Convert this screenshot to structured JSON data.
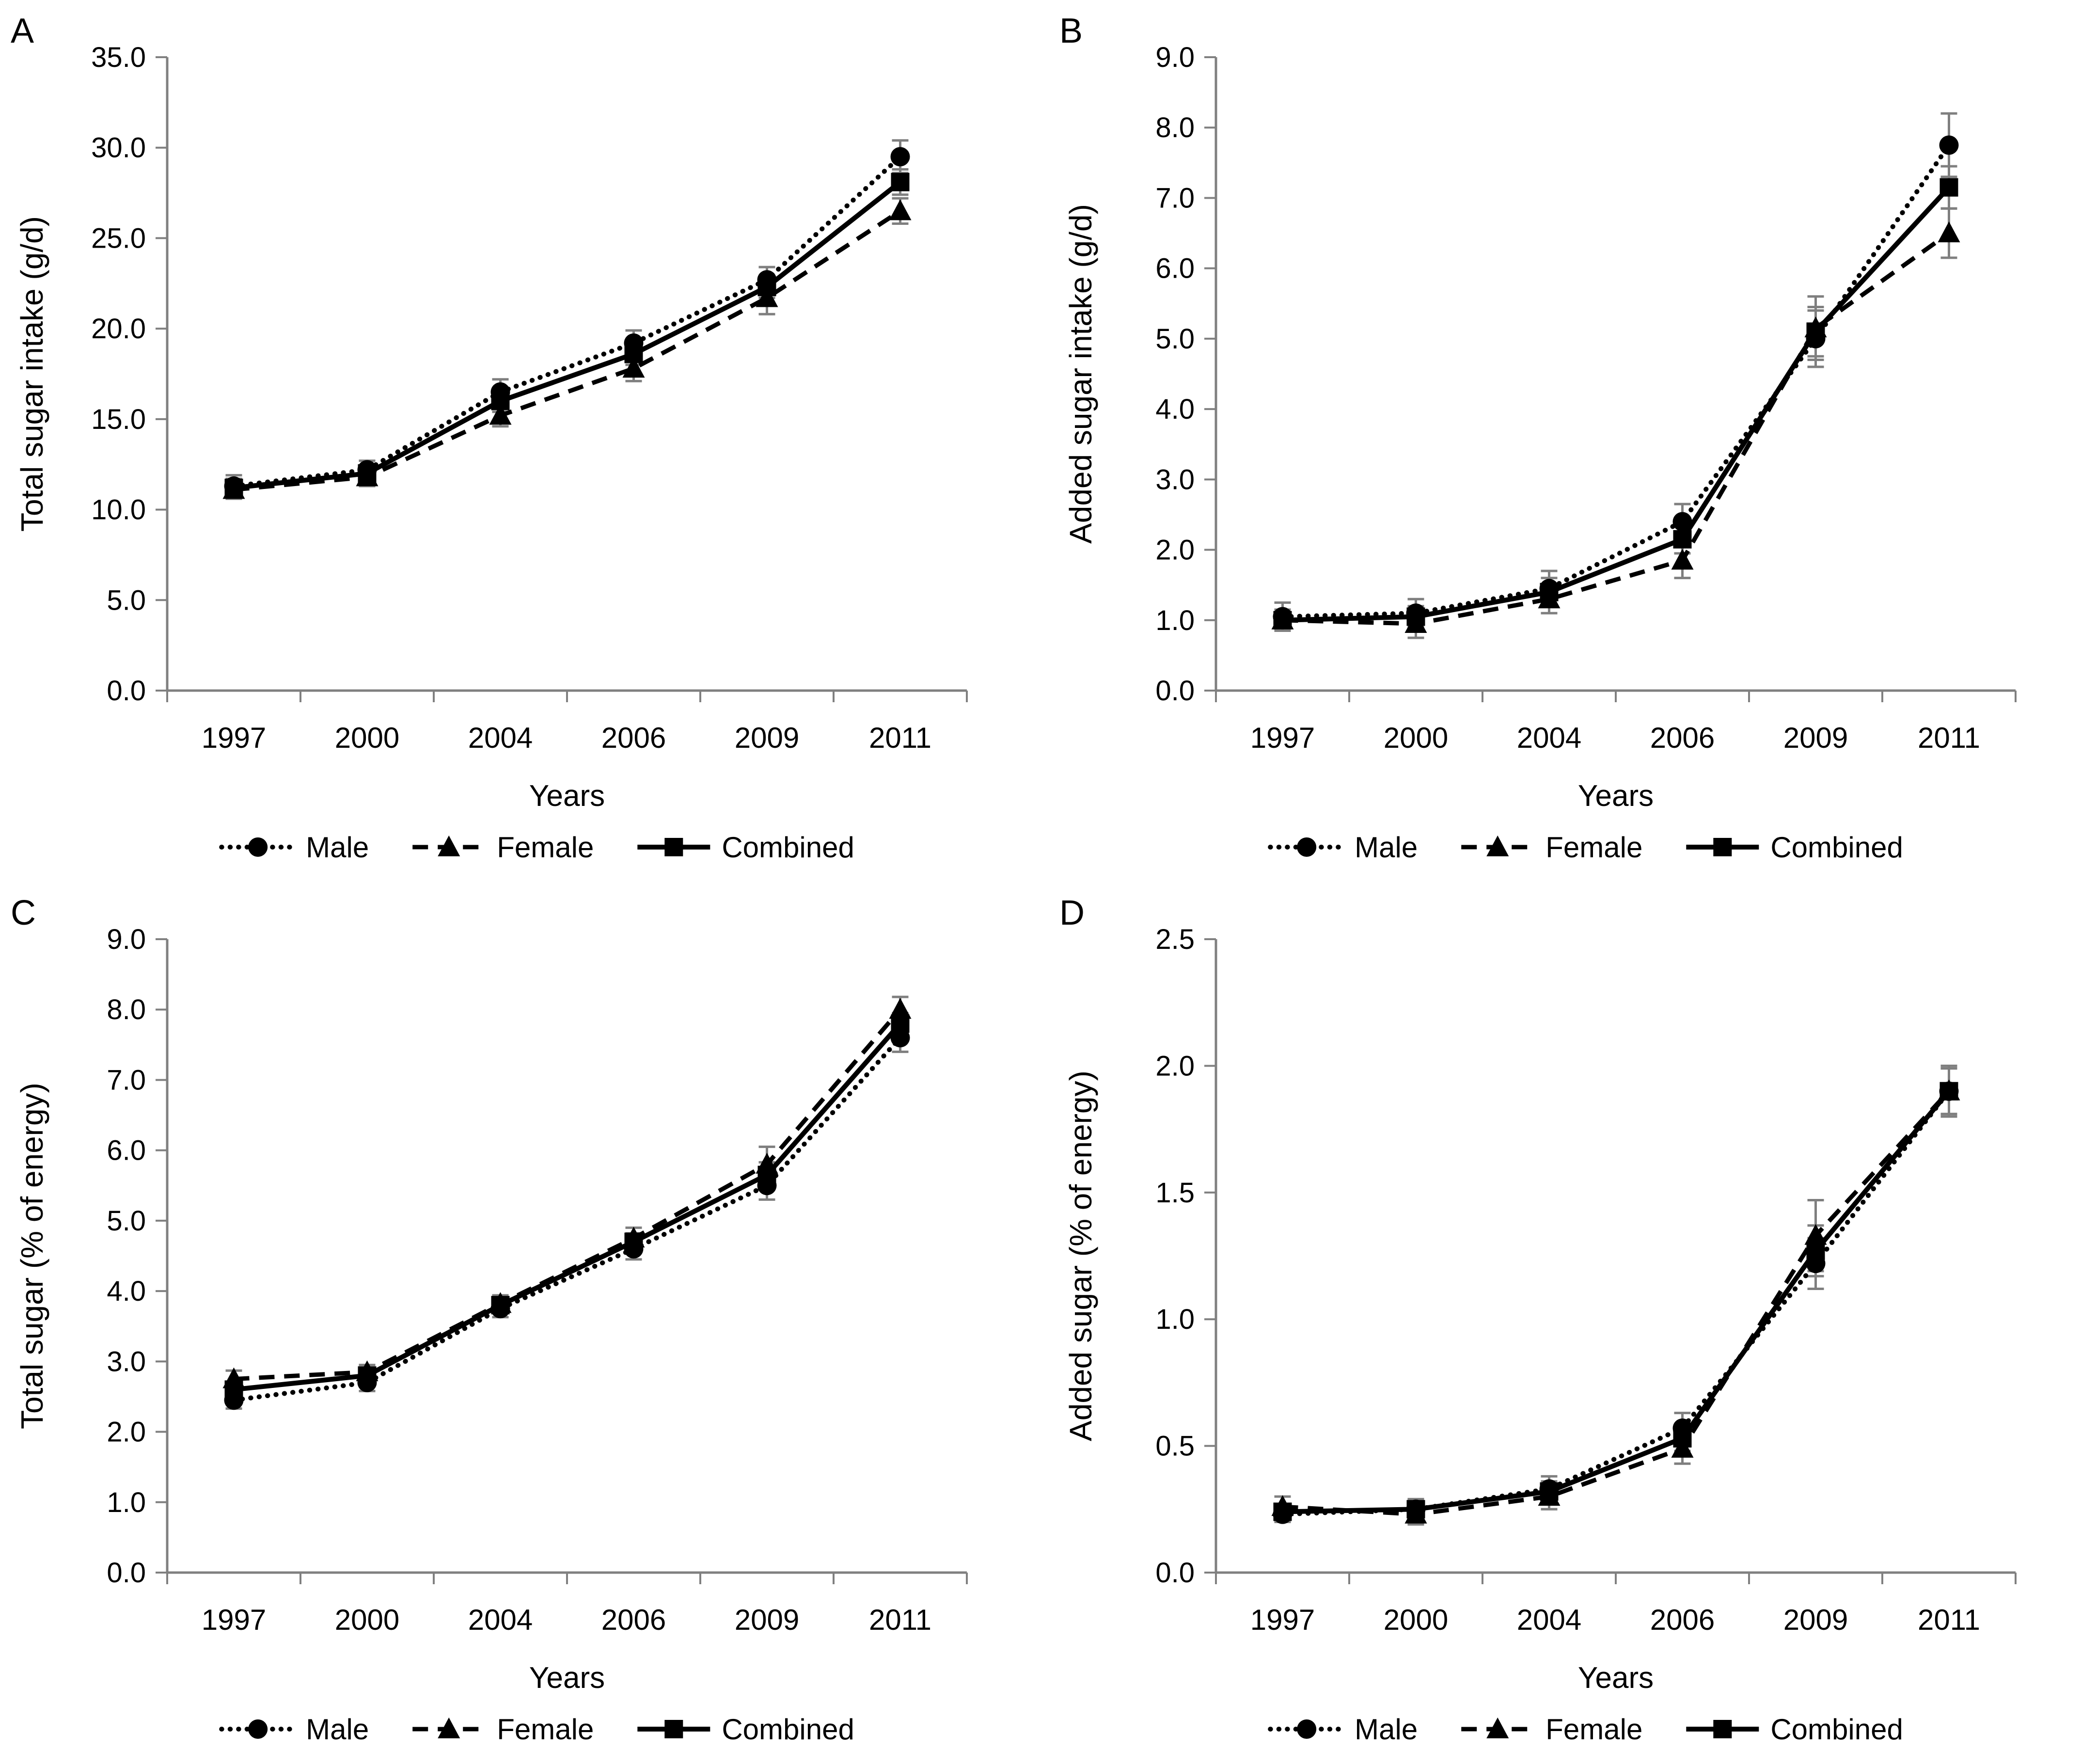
{
  "figure": {
    "background": "#ffffff",
    "text_color": "#000000",
    "axis_color": "#808080",
    "error_bar_color": "#7f7f7f",
    "series_color": "#000000"
  },
  "legend": {
    "items": [
      {
        "label": "Male",
        "marker": "circle",
        "line": "dotted"
      },
      {
        "label": "Female",
        "marker": "triangle",
        "line": "dashed"
      },
      {
        "label": "Combined",
        "marker": "square",
        "line": "solid"
      }
    ]
  },
  "chart_data": [
    {
      "panel_label": "A",
      "type": "line",
      "title": "",
      "xlabel": "Years",
      "ylabel": "Total sugar intake (g/d)",
      "categories": [
        "1997",
        "2000",
        "2004",
        "2006",
        "2009",
        "2011"
      ],
      "ylim": [
        0,
        35
      ],
      "ytick_step": 5,
      "ytick_labels": [
        "0.0",
        "5.0",
        "10.0",
        "15.0",
        "20.0",
        "25.0",
        "30.0",
        "35.0"
      ],
      "grid": false,
      "legend_position": "bottom",
      "series": [
        {
          "name": "Male",
          "marker": "circle",
          "line": "dotted",
          "values": [
            11.3,
            12.2,
            16.5,
            19.2,
            22.7,
            29.5
          ],
          "errors": [
            0.6,
            0.5,
            0.7,
            0.7,
            0.7,
            0.9
          ]
        },
        {
          "name": "Female",
          "marker": "triangle",
          "line": "dashed",
          "values": [
            11.1,
            11.8,
            15.2,
            17.8,
            21.7,
            26.5
          ],
          "errors": [
            0.5,
            0.5,
            0.6,
            0.7,
            0.9,
            0.7
          ]
        },
        {
          "name": "Combined",
          "marker": "square",
          "line": "solid",
          "values": [
            11.2,
            12.0,
            16.0,
            18.6,
            22.3,
            28.1
          ],
          "errors": [
            0.5,
            0.4,
            0.6,
            0.6,
            0.6,
            0.7
          ]
        }
      ]
    },
    {
      "panel_label": "B",
      "type": "line",
      "title": "",
      "xlabel": "Years",
      "ylabel": "Added sugar intake (g/d)",
      "categories": [
        "1997",
        "2000",
        "2004",
        "2006",
        "2009",
        "2011"
      ],
      "ylim": [
        0,
        9
      ],
      "ytick_step": 1,
      "ytick_labels": [
        "0.0",
        "1.0",
        "2.0",
        "3.0",
        "4.0",
        "5.0",
        "6.0",
        "7.0",
        "8.0",
        "9.0"
      ],
      "grid": false,
      "legend_position": "bottom",
      "series": [
        {
          "name": "Male",
          "marker": "circle",
          "line": "dotted",
          "values": [
            1.05,
            1.1,
            1.45,
            2.4,
            5.0,
            7.75
          ],
          "errors": [
            0.2,
            0.2,
            0.25,
            0.25,
            0.4,
            0.45
          ]
        },
        {
          "name": "Female",
          "marker": "triangle",
          "line": "dashed",
          "values": [
            1.0,
            0.95,
            1.3,
            1.85,
            5.15,
            6.5
          ],
          "errors": [
            0.15,
            0.2,
            0.2,
            0.25,
            0.45,
            0.35
          ]
        },
        {
          "name": "Combined",
          "marker": "square",
          "line": "solid",
          "values": [
            1.0,
            1.05,
            1.4,
            2.15,
            5.1,
            7.15
          ],
          "errors": [
            0.15,
            0.15,
            0.2,
            0.2,
            0.35,
            0.3
          ]
        }
      ]
    },
    {
      "panel_label": "C",
      "type": "line",
      "title": "",
      "xlabel": "Years",
      "ylabel": "Total sugar (% of energy)",
      "categories": [
        "1997",
        "2000",
        "2004",
        "2006",
        "2009",
        "2011"
      ],
      "ylim": [
        0,
        9
      ],
      "ytick_step": 1,
      "ytick_labels": [
        "0.0",
        "1.0",
        "2.0",
        "3.0",
        "4.0",
        "5.0",
        "6.0",
        "7.0",
        "8.0",
        "9.0"
      ],
      "grid": false,
      "legend_position": "bottom",
      "series": [
        {
          "name": "Male",
          "marker": "circle",
          "line": "dotted",
          "values": [
            2.45,
            2.7,
            3.75,
            4.6,
            5.5,
            7.6
          ],
          "errors": [
            0.12,
            0.12,
            0.12,
            0.15,
            0.2,
            0.2
          ]
        },
        {
          "name": "Female",
          "marker": "triangle",
          "line": "dashed",
          "values": [
            2.75,
            2.85,
            3.82,
            4.75,
            5.8,
            8.0
          ],
          "errors": [
            0.12,
            0.1,
            0.12,
            0.15,
            0.25,
            0.18
          ]
        },
        {
          "name": "Combined",
          "marker": "square",
          "line": "solid",
          "values": [
            2.6,
            2.8,
            3.8,
            4.7,
            5.65,
            7.8
          ],
          "errors": [
            0.1,
            0.1,
            0.1,
            0.12,
            0.18,
            0.15
          ]
        }
      ]
    },
    {
      "panel_label": "D",
      "type": "line",
      "title": "",
      "xlabel": "Years",
      "ylabel": "Added sugar (% of energy)",
      "categories": [
        "1997",
        "2000",
        "2004",
        "2006",
        "2009",
        "2011"
      ],
      "ylim": [
        0,
        2.5
      ],
      "ytick_step": 0.5,
      "ytick_labels": [
        "0.0",
        "0.5",
        "1.0",
        "1.5",
        "2.0",
        "2.5"
      ],
      "grid": false,
      "legend_position": "bottom",
      "series": [
        {
          "name": "Male",
          "marker": "circle",
          "line": "dotted",
          "values": [
            0.23,
            0.25,
            0.33,
            0.57,
            1.22,
            1.9
          ],
          "errors": [
            0.03,
            0.04,
            0.05,
            0.06,
            0.1,
            0.09
          ]
        },
        {
          "name": "Female",
          "marker": "triangle",
          "line": "dashed",
          "values": [
            0.26,
            0.23,
            0.3,
            0.49,
            1.33,
            1.9
          ],
          "errors": [
            0.04,
            0.04,
            0.05,
            0.06,
            0.14,
            0.1
          ]
        },
        {
          "name": "Combined",
          "marker": "square",
          "line": "solid",
          "values": [
            0.24,
            0.25,
            0.32,
            0.53,
            1.27,
            1.9
          ],
          "errors": [
            0.03,
            0.03,
            0.04,
            0.05,
            0.1,
            0.09
          ]
        }
      ]
    }
  ]
}
